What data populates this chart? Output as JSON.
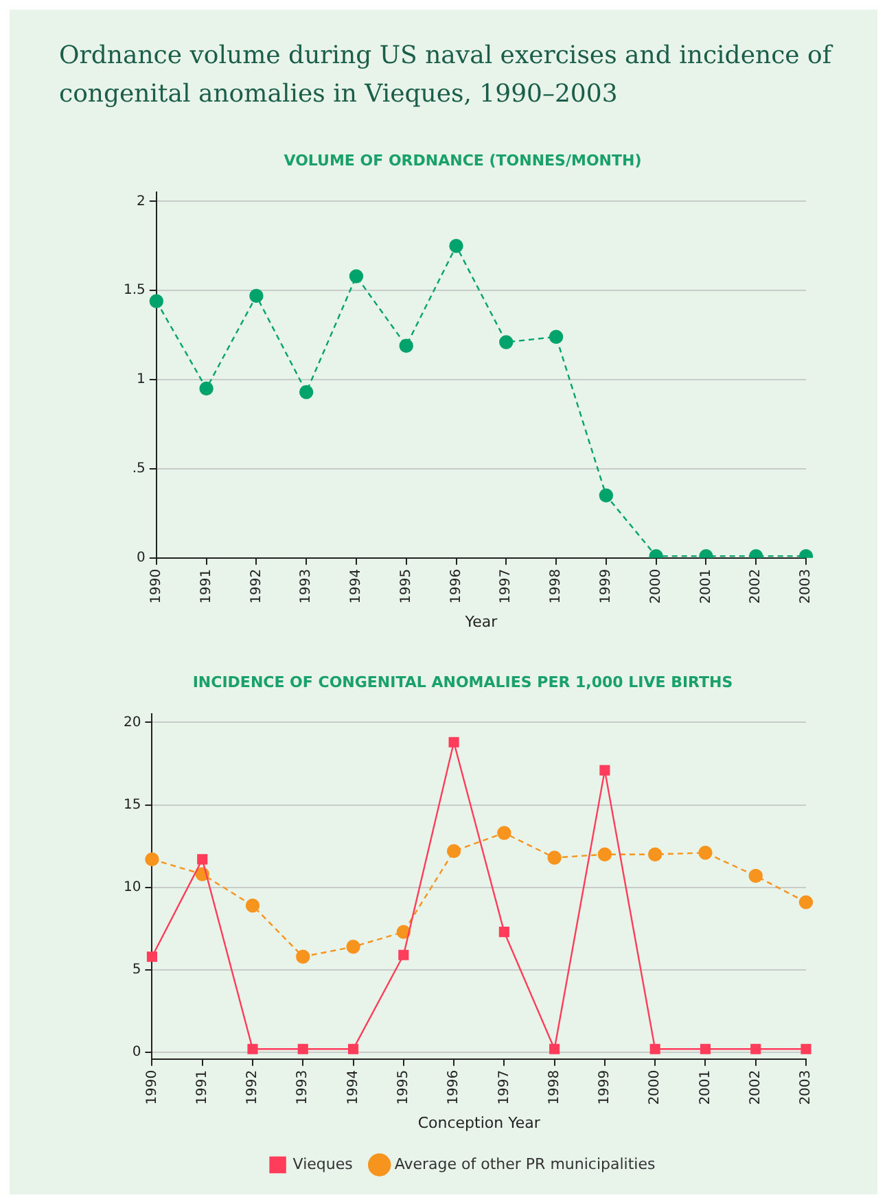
{
  "chart_data": [
    {
      "type": "line",
      "title": "Ordnance volume during US naval exercises and incidence of congenital anomalies in Vieques, 1990–2003",
      "subtitle": "VOLUME OF ORDNANCE (TONNES/MONTH)",
      "xlabel": "Year",
      "categories": [
        "1990",
        "1991",
        "1992",
        "1993",
        "1994",
        "1995",
        "1996",
        "1997",
        "1998",
        "1999",
        "2000",
        "2001",
        "2002",
        "2003"
      ],
      "series": [
        {
          "color": "#00a36c",
          "marker": "circle",
          "line_style": "dashed",
          "values": [
            1.44,
            0.95,
            1.47,
            0.93,
            1.58,
            1.19,
            1.75,
            1.21,
            1.24,
            0.35,
            0.01,
            0.01,
            0.01,
            0.01
          ]
        }
      ],
      "ylim": [
        0,
        2.05
      ],
      "yticks": [
        0,
        {
          "value": 0.5,
          "label": ".5"
        },
        1,
        1.5,
        2
      ],
      "grid": "y",
      "legend": false
    },
    {
      "type": "line",
      "title": "INCIDENCE OF CONGENITAL ANOMALIES PER 1,000 LIVE BIRTHS",
      "xlabel": "Conception Year",
      "categories": [
        "1990",
        "1991",
        "1992",
        "1993",
        "1994",
        "1995",
        "1996",
        "1997",
        "1998",
        "1999",
        "2000",
        "2001",
        "2002",
        "2003"
      ],
      "series": [
        {
          "name": "Vieques",
          "color": "#ff3d5a",
          "marker": "square",
          "line_style": "solid",
          "values": [
            5.8,
            11.7,
            0.2,
            0.2,
            0.2,
            5.9,
            18.8,
            7.3,
            0.2,
            17.1,
            0.2,
            0.2,
            0.2,
            0.2
          ]
        },
        {
          "name": "Average of other PR municipalities",
          "color": "#f7941d",
          "marker": "circle",
          "line_style": "dashed",
          "values": [
            11.7,
            10.8,
            8.9,
            5.8,
            6.4,
            7.3,
            12.2,
            13.3,
            11.8,
            12.0,
            12.0,
            12.1,
            10.7,
            9.1
          ]
        }
      ],
      "ylim": [
        -0.4,
        20.5
      ],
      "yticks": [
        0,
        5,
        10,
        15,
        20
      ],
      "grid": "y",
      "legend": "bottom"
    }
  ]
}
